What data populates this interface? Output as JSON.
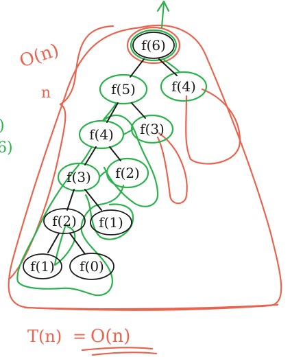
{
  "colors": {
    "ink": "#1a1a1a",
    "red": "#e8644f",
    "green": "#2bb24c",
    "background": "#ffffff"
  },
  "tree": {
    "nodes": [
      {
        "id": "f6",
        "label": "f(6)"
      },
      {
        "id": "f5",
        "label": "f(5)"
      },
      {
        "id": "f4r",
        "label": "f(4)"
      },
      {
        "id": "f4",
        "label": "f(4)"
      },
      {
        "id": "f3r",
        "label": "f(3)"
      },
      {
        "id": "f3",
        "label": "f(3)"
      },
      {
        "id": "f2r",
        "label": "f(2)"
      },
      {
        "id": "f2",
        "label": "f(2)"
      },
      {
        "id": "f1r",
        "label": "f(1)"
      },
      {
        "id": "f1",
        "label": "f(1)"
      },
      {
        "id": "f0",
        "label": "f(0)"
      }
    ]
  },
  "annotations": {
    "top_complexity": "O(n)",
    "depth_label": "n",
    "bottom_left": "T(n)",
    "bottom_equals": "=",
    "bottom_right": "O(n)",
    "left_edge_top": ")",
    "left_edge_bottom": "6)"
  }
}
